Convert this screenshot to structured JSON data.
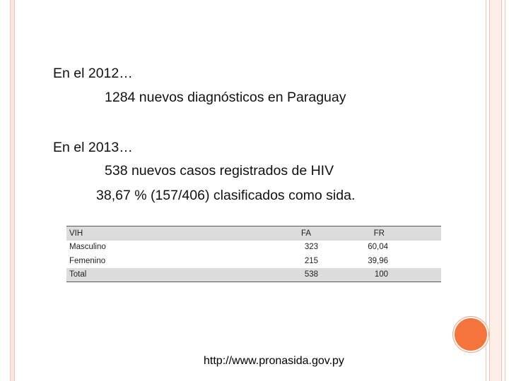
{
  "lines": {
    "year2012": "En el 2012…",
    "diag2012": "1284 nuevos diagnósticos en Paraguay",
    "year2013": "En el 2013…",
    "cases2013": "538 nuevos casos registrados de HIV",
    "aids2013": "38,67 % (157/406)  clasificados como sida."
  },
  "table": {
    "headers": [
      "VIH",
      "FA",
      "FR"
    ],
    "rows": [
      [
        "Masculino",
        "323",
        "60,04"
      ],
      [
        "Femenino",
        "215",
        "39,96"
      ],
      [
        "Total",
        "538",
        "100"
      ]
    ]
  },
  "source_url": "http://www.pronasida.gov.py",
  "colors": {
    "accent": "#f4743b",
    "frame": "#fbe7de",
    "table_shade": "#dcdcdc"
  }
}
